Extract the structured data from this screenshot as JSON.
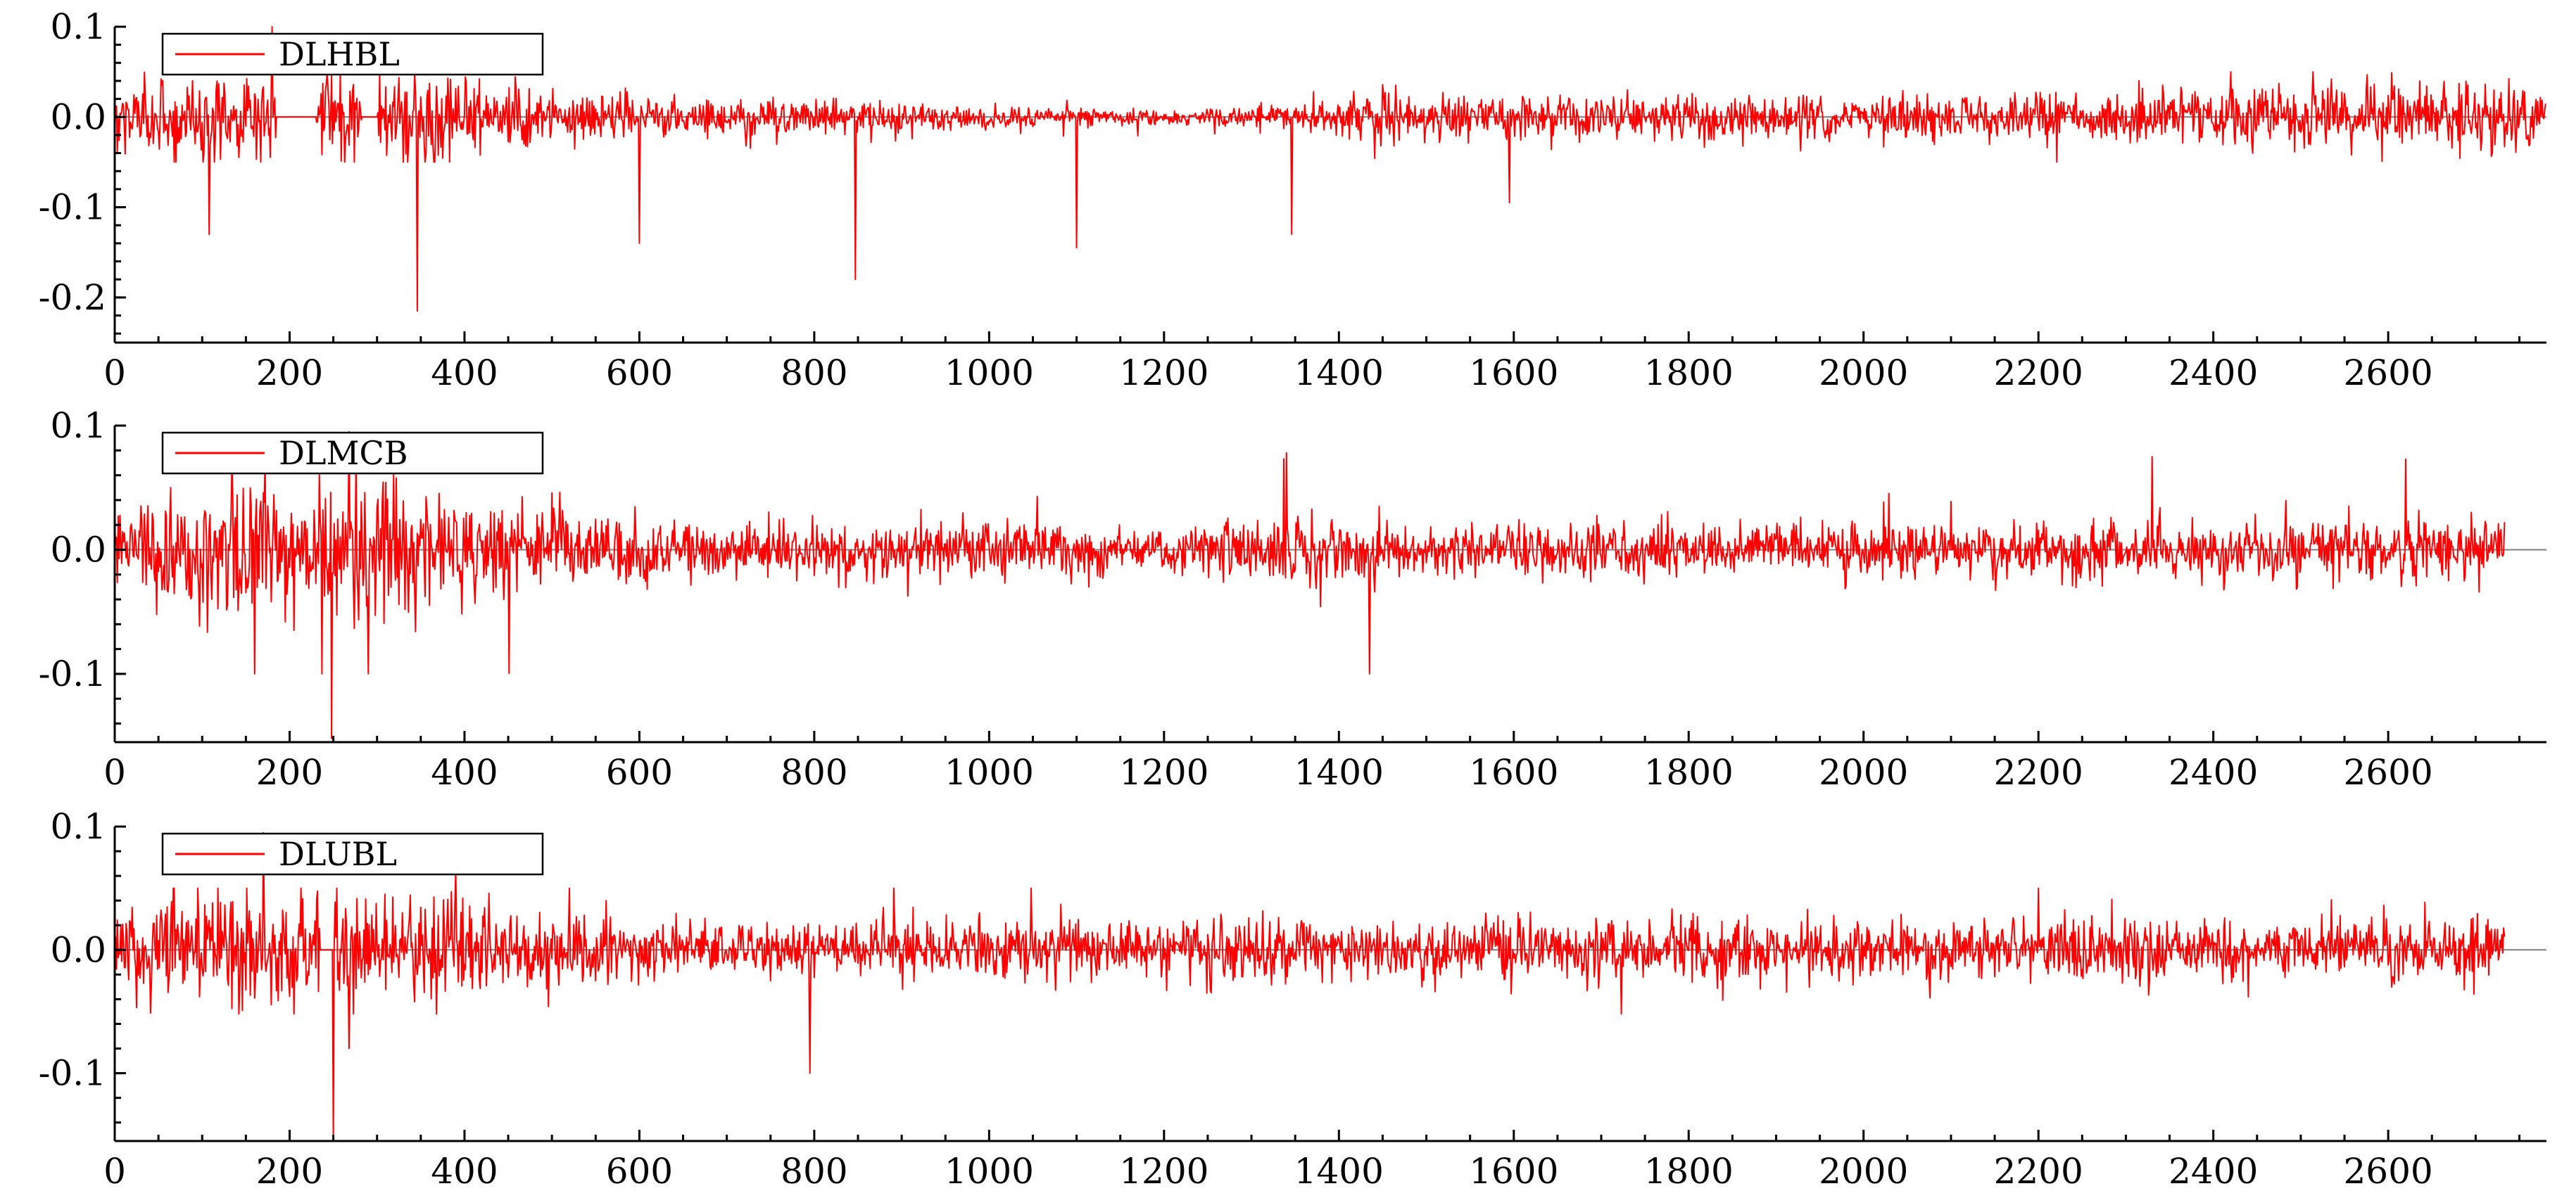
{
  "colors": {
    "series": "#ff0000",
    "axis": "#000000",
    "zero_line": "#7f7f7f",
    "background": "#ffffff"
  },
  "chart_data": [
    {
      "type": "line",
      "title": "",
      "xlabel": "",
      "ylabel": "",
      "legend": "DLHBL",
      "legend_position": "top-left",
      "n": 2781,
      "xlim": [
        0,
        2781
      ],
      "ylim": [
        -0.25,
        0.1
      ],
      "x_ticks": [
        0,
        200,
        400,
        600,
        800,
        1000,
        1200,
        1400,
        1600,
        1800,
        2000,
        2200,
        2400,
        2600
      ],
      "y_ticks": [
        0.1,
        0.0,
        -0.1,
        -0.2
      ],
      "y_tick_labels": [
        "0.1",
        "0.0",
        "-0.1",
        "-0.2"
      ],
      "zero_line": true,
      "grid": false,
      "flat_segments": [
        [
          185,
          230
        ],
        [
          283,
          300
        ]
      ],
      "spikes": [
        {
          "x": 108,
          "y": -0.13
        },
        {
          "x": 180,
          "y": 0.1
        },
        {
          "x": 346,
          "y": -0.215
        },
        {
          "x": 600,
          "y": -0.14
        },
        {
          "x": 847,
          "y": -0.18
        },
        {
          "x": 1100,
          "y": -0.145
        },
        {
          "x": 1346,
          "y": -0.13
        },
        {
          "x": 1595,
          "y": -0.095
        }
      ],
      "volatility": [
        {
          "x": 0,
          "v": 0.03
        },
        {
          "x": 150,
          "v": 0.035
        },
        {
          "x": 300,
          "v": 0.04
        },
        {
          "x": 450,
          "v": 0.03
        },
        {
          "x": 600,
          "v": 0.018
        },
        {
          "x": 800,
          "v": 0.016
        },
        {
          "x": 1000,
          "v": 0.01
        },
        {
          "x": 1200,
          "v": 0.007
        },
        {
          "x": 1350,
          "v": 0.01
        },
        {
          "x": 1450,
          "v": 0.022
        },
        {
          "x": 1700,
          "v": 0.02
        },
        {
          "x": 2000,
          "v": 0.018
        },
        {
          "x": 2300,
          "v": 0.02
        },
        {
          "x": 2500,
          "v": 0.025
        },
        {
          "x": 2781,
          "v": 0.028
        }
      ],
      "clip": [
        -0.05,
        0.05
      ]
    },
    {
      "type": "line",
      "title": "",
      "xlabel": "",
      "ylabel": "",
      "legend": "DLMCB",
      "legend_position": "top-left",
      "n": 2734,
      "xlim": [
        0,
        2781
      ],
      "ylim": [
        -0.155,
        0.1
      ],
      "x_ticks": [
        0,
        200,
        400,
        600,
        800,
        1000,
        1200,
        1400,
        1600,
        1800,
        2000,
        2200,
        2400,
        2600
      ],
      "y_ticks": [
        0.1,
        0.0,
        -0.1
      ],
      "y_tick_labels": [
        "0.1",
        "0.0",
        "-0.1"
      ],
      "zero_line": true,
      "grid": false,
      "flat_segments": [],
      "spikes": [
        {
          "x": 160,
          "y": -0.1
        },
        {
          "x": 248,
          "y": -0.152
        },
        {
          "x": 268,
          "y": 0.095
        },
        {
          "x": 290,
          "y": -0.1
        },
        {
          "x": 1340,
          "y": 0.078
        },
        {
          "x": 1435,
          "y": -0.1
        },
        {
          "x": 2330,
          "y": 0.075
        },
        {
          "x": 2620,
          "y": 0.073
        }
      ],
      "volatility": [
        {
          "x": 0,
          "v": 0.03
        },
        {
          "x": 150,
          "v": 0.045
        },
        {
          "x": 300,
          "v": 0.045
        },
        {
          "x": 450,
          "v": 0.03
        },
        {
          "x": 700,
          "v": 0.016
        },
        {
          "x": 1000,
          "v": 0.018
        },
        {
          "x": 1200,
          "v": 0.015
        },
        {
          "x": 1350,
          "v": 0.022
        },
        {
          "x": 1500,
          "v": 0.014
        },
        {
          "x": 1800,
          "v": 0.016
        },
        {
          "x": 2100,
          "v": 0.016
        },
        {
          "x": 2400,
          "v": 0.018
        },
        {
          "x": 2734,
          "v": 0.017
        }
      ],
      "clip": [
        -0.1,
        0.09
      ]
    },
    {
      "type": "line",
      "title": "",
      "xlabel": "",
      "ylabel": "",
      "legend": "DLUBL",
      "legend_position": "top-left",
      "n": 2734,
      "xlim": [
        0,
        2781
      ],
      "ylim": [
        -0.155,
        0.1
      ],
      "x_ticks": [
        0,
        200,
        400,
        600,
        800,
        1000,
        1200,
        1400,
        1600,
        1800,
        2000,
        2200,
        2400,
        2600
      ],
      "y_ticks": [
        0.1,
        0.0,
        -0.1
      ],
      "y_tick_labels": [
        "0.1",
        "0.0",
        "-0.1"
      ],
      "zero_line": true,
      "grid": false,
      "flat_segments": [
        [
          235,
          250
        ]
      ],
      "spikes": [
        {
          "x": 170,
          "y": 0.095
        },
        {
          "x": 250,
          "y": -0.152
        },
        {
          "x": 268,
          "y": -0.08
        },
        {
          "x": 390,
          "y": 0.065
        },
        {
          "x": 795,
          "y": -0.1
        }
      ],
      "volatility": [
        {
          "x": 0,
          "v": 0.025
        },
        {
          "x": 150,
          "v": 0.035
        },
        {
          "x": 300,
          "v": 0.035
        },
        {
          "x": 450,
          "v": 0.025
        },
        {
          "x": 700,
          "v": 0.014
        },
        {
          "x": 1000,
          "v": 0.02
        },
        {
          "x": 1300,
          "v": 0.018
        },
        {
          "x": 1600,
          "v": 0.02
        },
        {
          "x": 2000,
          "v": 0.017
        },
        {
          "x": 2400,
          "v": 0.02
        },
        {
          "x": 2734,
          "v": 0.018
        }
      ],
      "clip": [
        -0.052,
        0.05
      ]
    }
  ]
}
